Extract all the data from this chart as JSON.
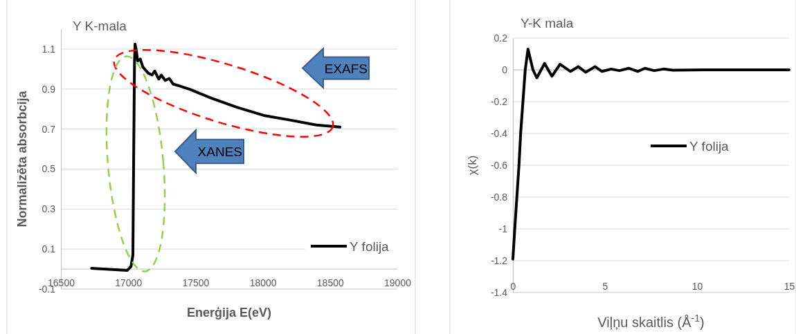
{
  "chart_data": [
    {
      "type": "line",
      "title": "Y K-mala",
      "xlabel": "Enerģija E(eV)",
      "ylabel": "Normalizēta absorbcija",
      "xlim": [
        16500,
        19000
      ],
      "xticks": [
        16500,
        17000,
        17500,
        18000,
        18500,
        19000
      ],
      "ylim": [
        -0.1,
        1.2
      ],
      "yticks": [
        -0.1,
        0.1,
        0.3,
        0.5,
        0.7,
        0.9,
        1.1
      ],
      "grid": "y",
      "legend": "bottom right",
      "annotations": [
        "EXAFS",
        "XANES"
      ],
      "series": [
        {
          "name": "Y folija",
          "color": "#000000",
          "x": [
            16728,
            16992,
            17021,
            17035,
            17041,
            17047,
            17051,
            17061,
            17070,
            17090,
            17109,
            17129,
            17148,
            17178,
            17197,
            17227,
            17246,
            17275,
            17305,
            17334,
            17383,
            17461,
            17617,
            17812,
            18008,
            18203,
            18398,
            18574
          ],
          "values": [
            0.004,
            -0.007,
            0.013,
            0.07,
            0.58,
            1.04,
            1.125,
            1.09,
            1.04,
            1.05,
            1.01,
            0.995,
            0.98,
            0.97,
            0.99,
            0.95,
            0.97,
            0.943,
            0.953,
            0.925,
            0.915,
            0.898,
            0.855,
            0.808,
            0.768,
            0.745,
            0.72,
            0.71
          ]
        }
      ]
    },
    {
      "type": "line",
      "title": "Y-K mala",
      "xlabel": "Viļņu skaitlis (Å$^{-1}$)",
      "ylabel": "χ(k)",
      "xlim": [
        0,
        15
      ],
      "xticks": [
        0,
        5,
        10,
        15
      ],
      "ylim": [
        -1.4,
        0.2
      ],
      "yticks": [
        -1.4,
        -1.2,
        -1,
        -0.8,
        -0.6,
        -0.4,
        -0.2,
        0,
        0.2
      ],
      "grid": "y",
      "legend": "right",
      "series": [
        {
          "name": "Y folija",
          "color": "#000000",
          "x": [
            0,
            0.1,
            0.33,
            0.42,
            0.67,
            0.82,
            1.09,
            1.3,
            1.72,
            2.12,
            2.56,
            3.13,
            3.55,
            3.95,
            4.46,
            4.84,
            5.34,
            5.78,
            6.29,
            6.79,
            7.17,
            7.68,
            8.18,
            8.69,
            10.58,
            15
          ],
          "values": [
            -1.19,
            -1,
            -0.6,
            -0.4,
            0,
            0.13,
            0,
            -0.05,
            0.04,
            -0.04,
            0.035,
            -0.01,
            0.02,
            -0.015,
            0.02,
            -0.01,
            0.005,
            -0.005,
            0.01,
            -0.01,
            0.01,
            -0.005,
            0.005,
            -0.002,
            0,
            0
          ]
        }
      ]
    }
  ]
}
